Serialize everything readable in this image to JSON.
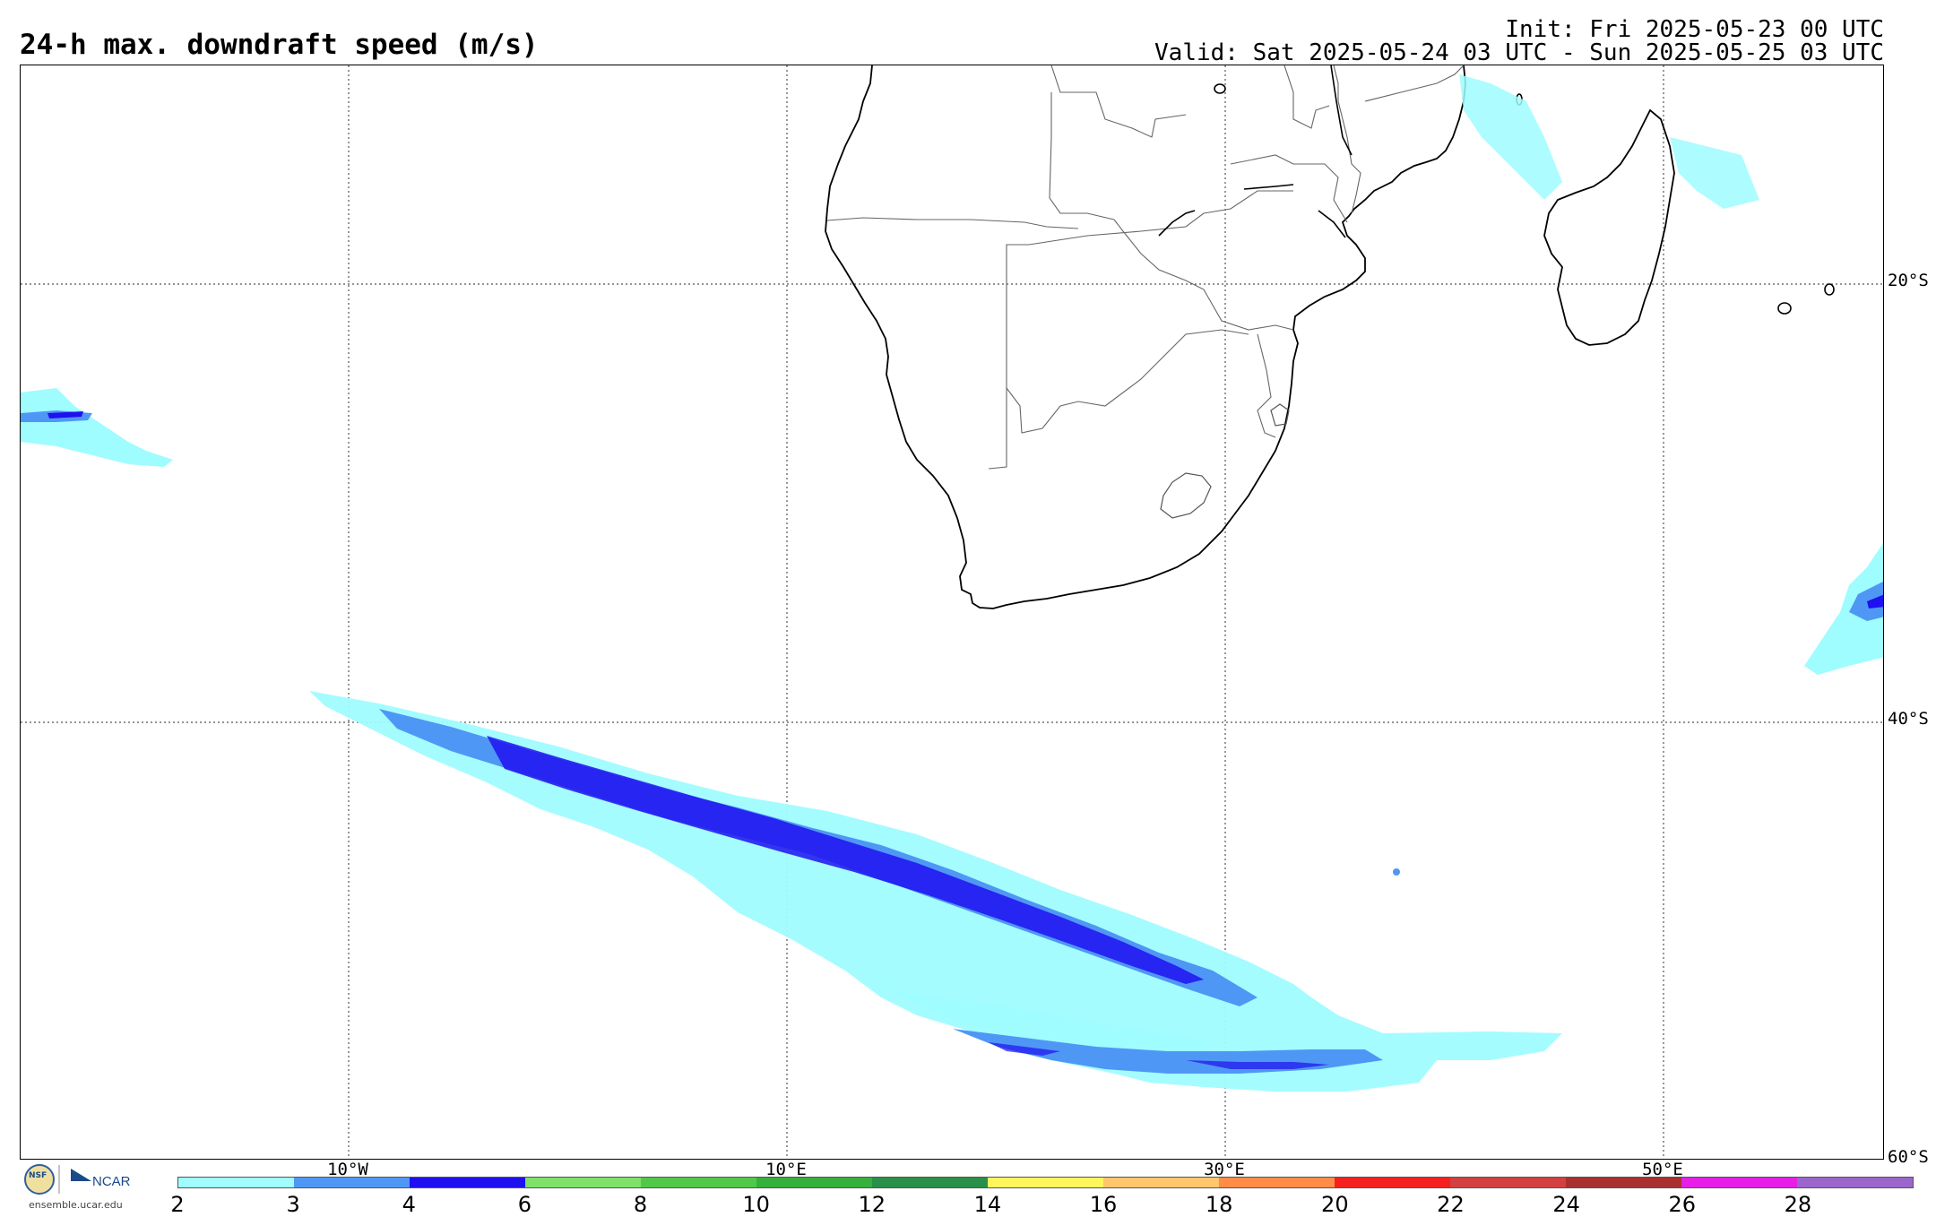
{
  "header": {
    "title": "24-h max. downdraft speed (m/s)",
    "init": "Init: Fri 2025-05-23 00 UTC",
    "valid": "Valid: Sat 2025-05-24 03 UTC - Sun 2025-05-25 03 UTC"
  },
  "map": {
    "lat_labels": [
      "20°S",
      "40°S",
      "60°S"
    ],
    "lon_labels": [
      "10°W",
      "10°E",
      "30°E",
      "50°E"
    ],
    "grid_style": "dotted",
    "region": "Southern Africa / South Atlantic / SW Indian Ocean"
  },
  "colorbar": {
    "ticks": [
      "2",
      "3",
      "4",
      "6",
      "8",
      "10",
      "12",
      "14",
      "16",
      "18",
      "20",
      "22",
      "24",
      "26",
      "28"
    ],
    "colors": [
      "#9ffcff",
      "#4f97f5",
      "#1f10f0",
      "#7fe06a",
      "#52c84a",
      "#36b03c",
      "#289048",
      "#fff55c",
      "#ffc66b",
      "#ff8c48",
      "#f52020",
      "#d24040",
      "#a83030",
      "#e61ee6",
      "#9b66cc"
    ]
  },
  "logo": {
    "org1": "NSF",
    "org2": "NCAR",
    "url": "ensemble.ucar.edu"
  }
}
